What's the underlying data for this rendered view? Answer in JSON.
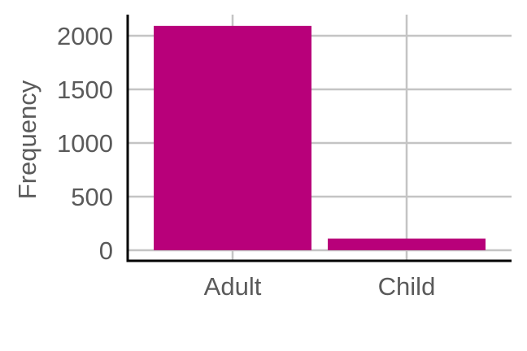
{
  "chart_data": {
    "type": "bar",
    "categories": [
      "Adult",
      "Child"
    ],
    "values": [
      2092,
      109
    ],
    "title": "",
    "xlabel": "",
    "ylabel": "Frequency",
    "ylim": [
      0,
      2200
    ],
    "yticks": [
      0,
      500,
      1000,
      1500,
      2000
    ],
    "grid": true,
    "bar_color": "#b8007a"
  }
}
